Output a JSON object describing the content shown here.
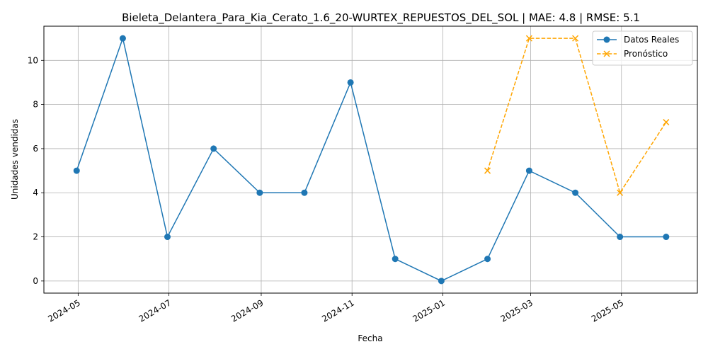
{
  "chart_data": {
    "type": "line",
    "title": "Bieleta_Delantera_Para_Kia_Cerato_1.6_20-WURTEX_REPUESTOS_DEL_SOL | MAE: 4.8 | RMSE: 5.1",
    "xlabel": "Fecha",
    "ylabel": "Unidades vendidas",
    "xlim": [
      "2024-04-08",
      "2025-06-21"
    ],
    "ylim": [
      -0.55,
      11.55
    ],
    "x_ticks": [
      "2024-05",
      "2024-07",
      "2024-09",
      "2024-11",
      "2025-01",
      "2025-03",
      "2025-05"
    ],
    "y_ticks": [
      0,
      2,
      4,
      6,
      8,
      10
    ],
    "grid": true,
    "legend_position": "top-right",
    "series": [
      {
        "name": "Datos Reales",
        "color": "#1f77b4",
        "line_style": "solid",
        "marker": "circle",
        "x": [
          "2024-04-30",
          "2024-05-31",
          "2024-06-30",
          "2024-07-31",
          "2024-08-31",
          "2024-09-30",
          "2024-10-31",
          "2024-11-30",
          "2024-12-31",
          "2025-01-31",
          "2025-02-28",
          "2025-03-31",
          "2025-04-30",
          "2025-05-31"
        ],
        "values": [
          5,
          11,
          2,
          6,
          4,
          4,
          9,
          1,
          0,
          1,
          5,
          4,
          2,
          2
        ]
      },
      {
        "name": "Pronóstico",
        "color": "#ffa500",
        "line_style": "dashed",
        "marker": "x",
        "x": [
          "2025-01-31",
          "2025-02-28",
          "2025-03-31",
          "2025-04-30",
          "2025-05-31"
        ],
        "values": [
          5,
          11,
          11,
          4,
          7.2
        ]
      }
    ]
  }
}
